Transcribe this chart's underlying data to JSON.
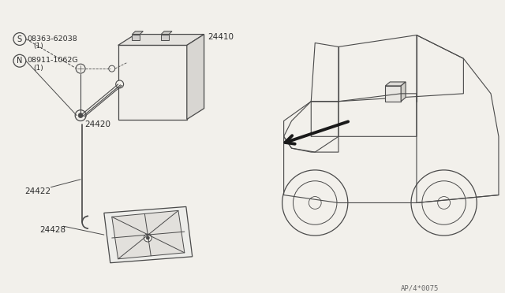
{
  "bg_color": "#f2f0eb",
  "line_color": "#4a4a4a",
  "text_color": "#2a2a2a",
  "part_numbers": {
    "battery": "24410",
    "cable_harness": "24420",
    "rod": "24422",
    "tray": "24428",
    "bolt": "08363-62038",
    "nut": "08911-1062G"
  },
  "footnote": "AP/4*0075",
  "s_label": "S",
  "n_label": "N",
  "qty_1": "(1)"
}
